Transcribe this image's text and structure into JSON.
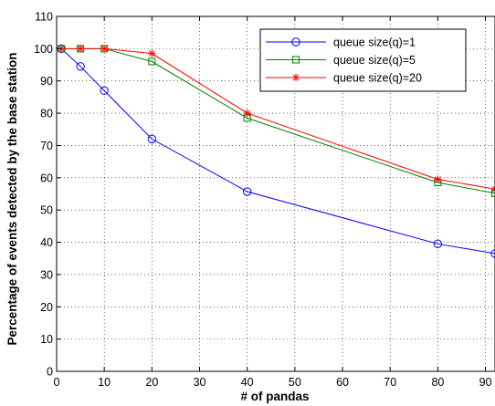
{
  "chart_data": {
    "type": "line",
    "title": "",
    "xlabel": "# of pandas",
    "ylabel": "Percentage of events detected by the base station",
    "xlim": [
      0,
      92
    ],
    "ylim": [
      0,
      110
    ],
    "xticks": [
      0,
      10,
      20,
      30,
      40,
      50,
      60,
      70,
      80,
      90
    ],
    "yticks": [
      0,
      10,
      20,
      30,
      40,
      50,
      60,
      70,
      80,
      90,
      100,
      110
    ],
    "grid": true,
    "legend_position": "top-right",
    "series": [
      {
        "name": "queue size(q)=1",
        "color": "#0000ff",
        "marker": "circle",
        "x": [
          1,
          5,
          10,
          20,
          40,
          80,
          92
        ],
        "y": [
          100,
          94.5,
          87,
          72,
          55.7,
          39.5,
          36.5
        ]
      },
      {
        "name": "queue size(q)=5",
        "color": "#008000",
        "marker": "square",
        "x": [
          1,
          5,
          10,
          20,
          40,
          80,
          92
        ],
        "y": [
          100,
          100,
          100,
          96,
          78.5,
          58.5,
          55.2
        ]
      },
      {
        "name": "queue size(q)=20",
        "color": "#ff0000",
        "marker": "star",
        "x": [
          1,
          5,
          10,
          20,
          40,
          80,
          92
        ],
        "y": [
          100,
          100,
          100,
          98.5,
          80,
          59.5,
          56.5
        ]
      }
    ]
  }
}
